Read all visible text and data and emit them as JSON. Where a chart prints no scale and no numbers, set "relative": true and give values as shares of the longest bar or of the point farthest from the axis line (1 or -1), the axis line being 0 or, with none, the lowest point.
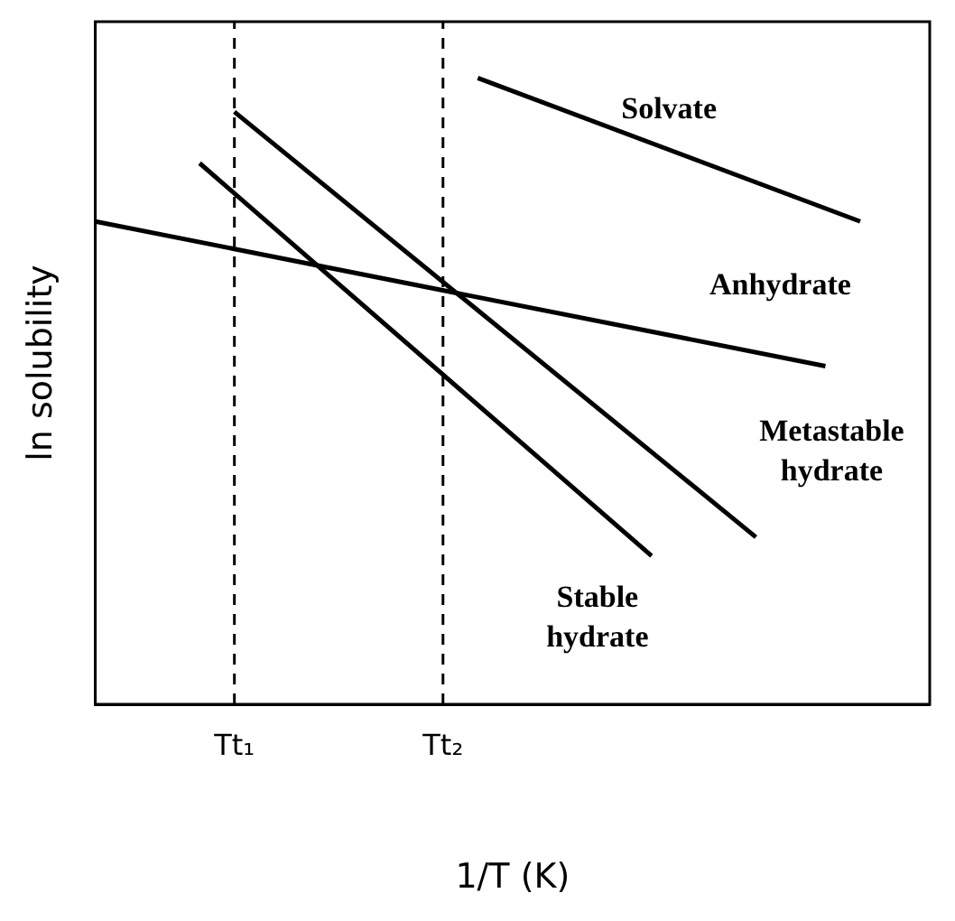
{
  "chart_data": {
    "type": "line",
    "relative": true,
    "xlabel": "1/T (K)",
    "ylabel": "ln solubility",
    "categories": [
      null,
      null,
      null,
      null,
      "Tt₁",
      null,
      null,
      null,
      null,
      null,
      "Tt₂",
      null,
      null,
      null,
      null,
      null,
      null,
      null,
      null,
      null,
      null,
      null,
      null,
      null,
      null
    ],
    "grid": false,
    "marker": "none",
    "line_style": "solid",
    "legend": false,
    "series": [
      {
        "name": "Solvate",
        "color": "#000000",
        "values": [
          null,
          null,
          null,
          null,
          null,
          null,
          null,
          null,
          null,
          null,
          null,
          1,
          null,
          null,
          null,
          null,
          null,
          null,
          null,
          null,
          null,
          null,
          0.771,
          null,
          null
        ]
      },
      {
        "name": "Anhydrate",
        "color": "#000000",
        "values": [
          0.771,
          null,
          null,
          null,
          null,
          null,
          null,
          null,
          null,
          null,
          null,
          null,
          null,
          null,
          null,
          null,
          null,
          null,
          null,
          null,
          null,
          0.54,
          null,
          null,
          null
        ]
      },
      {
        "name": "Metastable hydrate",
        "color": "#000000",
        "values": [
          null,
          null,
          null,
          null,
          0.946,
          null,
          null,
          null,
          null,
          null,
          null,
          null,
          null,
          null,
          null,
          null,
          null,
          null,
          null,
          0.267,
          null,
          null,
          null,
          null,
          null
        ]
      },
      {
        "name": "Stable hydrate",
        "color": "#000000",
        "values": [
          null,
          null,
          null,
          0.864,
          null,
          null,
          null,
          null,
          null,
          null,
          null,
          null,
          null,
          null,
          null,
          null,
          0.237,
          null,
          null,
          null,
          null,
          null,
          null,
          null,
          null
        ]
      }
    ],
    "ref_lines": [
      {
        "axis": "x",
        "value": "Tt₁",
        "line_style": "dashed"
      },
      {
        "axis": "x",
        "value": "Tt₂",
        "line_style": "dashed"
      }
    ]
  }
}
